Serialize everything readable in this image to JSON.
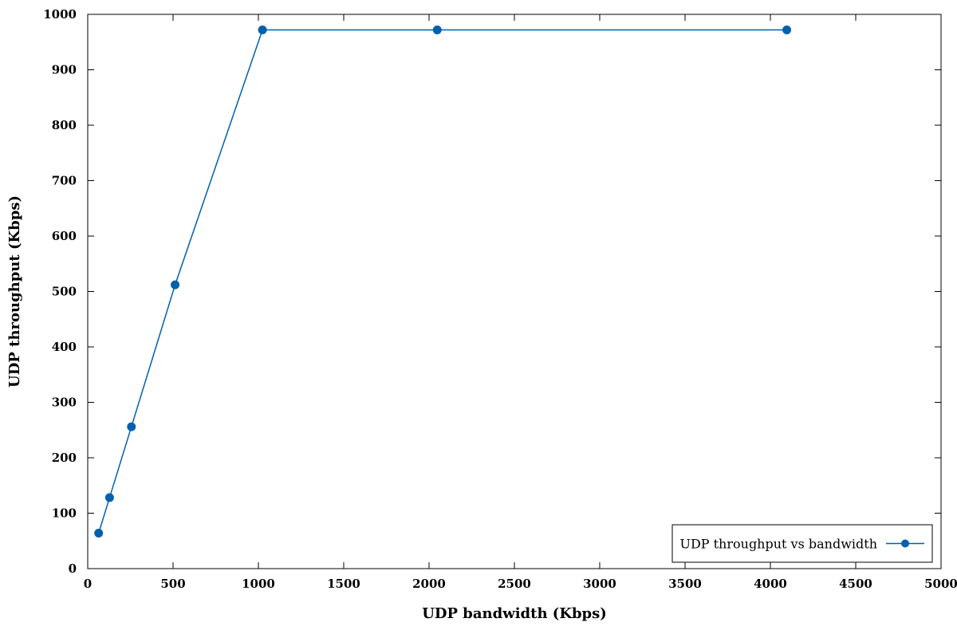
{
  "chart_data": {
    "type": "line",
    "title": "",
    "xlabel": "UDP bandwidth (Kbps)",
    "ylabel": "UDP throughput (Kbps)",
    "xlim": [
      0,
      5000
    ],
    "ylim": [
      0,
      1000
    ],
    "xticks": [
      0,
      500,
      1000,
      1500,
      2000,
      2500,
      3000,
      3500,
      4000,
      4500,
      5000
    ],
    "yticks": [
      0,
      100,
      200,
      300,
      400,
      500,
      600,
      700,
      800,
      900,
      1000
    ],
    "grid": false,
    "legend_position": "bottom-right",
    "series": [
      {
        "name": "UDP throughput vs bandwidth",
        "color": "#0060ad",
        "marker": "circle",
        "x": [
          64,
          128,
          256,
          512,
          1024,
          2048,
          4096
        ],
        "y": [
          64,
          128,
          256,
          512,
          972,
          972,
          972
        ]
      }
    ]
  }
}
